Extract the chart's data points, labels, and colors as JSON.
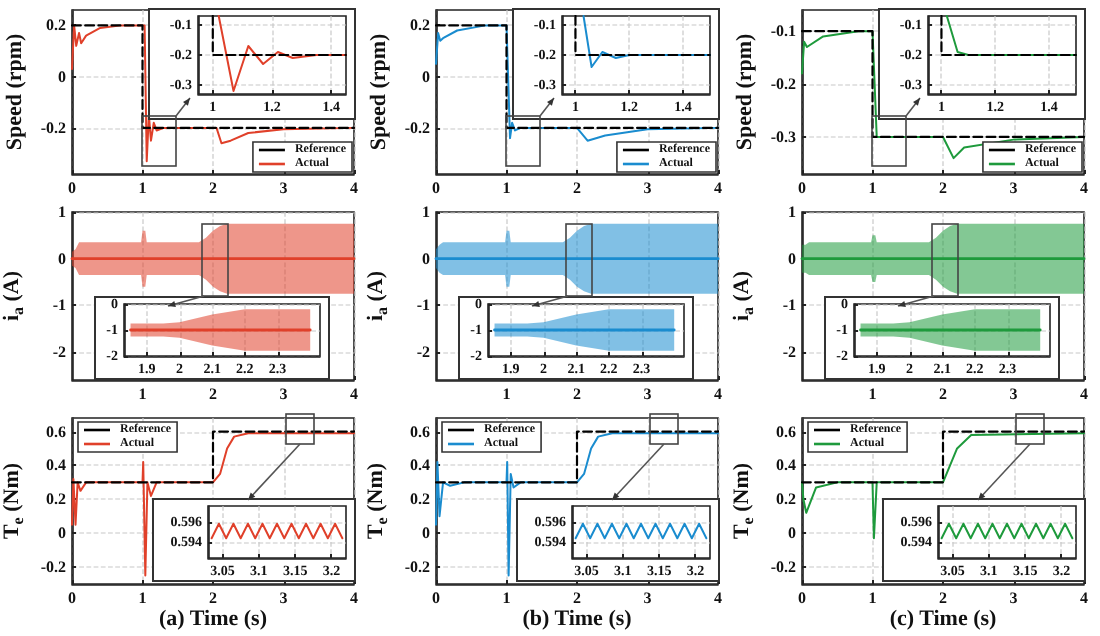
{
  "chart_data": [
    {
      "type": "line",
      "xlim": [
        0,
        4
      ],
      "xticks": [
        0,
        1,
        2,
        3,
        4
      ],
      "ylim": [
        -0.38,
        0.26
      ],
      "yticks": [
        -0.2,
        0,
        0.2
      ],
      "ylabel": "Speed (rpm)",
      "legend": "bottom right",
      "grid": true,
      "series": [
        {
          "name": "Reference",
          "color": "#000000",
          "line_style": "dashed",
          "x": [
            0,
            1,
            1,
            4
          ],
          "values": [
            0.2,
            0.2,
            -0.2,
            -0.2
          ]
        },
        {
          "name": "Actual",
          "color": "#e0402a",
          "line_style": "solid",
          "x": [
            0,
            0.03,
            0.06,
            0.1,
            0.13,
            0.2,
            0.4,
            0.7,
            1.0,
            1.03,
            1.06,
            1.09,
            1.12,
            1.16,
            1.2,
            1.3,
            2.0,
            2.05,
            2.12,
            2.25,
            2.5,
            3,
            4
          ],
          "values": [
            0.03,
            0.2,
            0.12,
            0.17,
            0.13,
            0.16,
            0.19,
            0.2,
            0.2,
            0.2,
            -0.33,
            -0.15,
            -0.25,
            -0.18,
            -0.21,
            -0.2,
            -0.2,
            -0.2,
            -0.26,
            -0.25,
            -0.22,
            -0.205,
            -0.2
          ]
        }
      ]
    },
    {
      "type": "line",
      "xlim": [
        0.95,
        1.45
      ],
      "xticks": [
        1,
        1.2,
        1.4
      ],
      "ylim": [
        -0.33,
        -0.07
      ],
      "yticks": [
        -0.3,
        -0.2,
        -0.1
      ],
      "grid": true,
      "series": [
        {
          "color": "#000000",
          "line_style": "dashed",
          "x": [
            1,
            1,
            1.45
          ],
          "values": [
            -0.07,
            -0.2,
            -0.2
          ]
        },
        {
          "color": "#e0402a",
          "line_style": "solid",
          "x": [
            1.02,
            1.07,
            1.12,
            1.17,
            1.22,
            1.27,
            1.35,
            1.45
          ],
          "values": [
            -0.07,
            -0.32,
            -0.17,
            -0.23,
            -0.19,
            -0.21,
            -0.2,
            -0.2
          ]
        }
      ]
    },
    {
      "type": "line",
      "xlim": [
        0,
        4
      ],
      "xticks": [
        0,
        1,
        2,
        3,
        4
      ],
      "ylim": [
        -0.38,
        0.26
      ],
      "yticks": [
        -0.2,
        0,
        0.2
      ],
      "ylabel": "Speed (rpm)",
      "legend": "bottom right",
      "grid": true,
      "series": [
        {
          "name": "Reference",
          "color": "#000000",
          "line_style": "dashed",
          "x": [
            0,
            1,
            1,
            4
          ],
          "values": [
            0.2,
            0.2,
            -0.2,
            -0.2
          ]
        },
        {
          "name": "Actual",
          "color": "#1a8ccf",
          "line_style": "solid",
          "x": [
            0,
            0.03,
            0.06,
            0.1,
            0.3,
            0.7,
            1.0,
            1.02,
            1.05,
            1.08,
            1.12,
            1.2,
            2.0,
            2.15,
            2.4,
            3,
            4
          ],
          "values": [
            0.05,
            0.17,
            0.14,
            0.15,
            0.18,
            0.2,
            0.2,
            0.2,
            -0.24,
            -0.18,
            -0.21,
            -0.2,
            -0.2,
            -0.25,
            -0.23,
            -0.205,
            -0.2
          ]
        }
      ]
    },
    {
      "type": "line",
      "xlim": [
        0.95,
        1.5
      ],
      "xticks": [
        1,
        1.2,
        1.4
      ],
      "ylim": [
        -0.33,
        -0.07
      ],
      "yticks": [
        -0.3,
        -0.2,
        -0.1
      ],
      "grid": true,
      "series": [
        {
          "color": "#000000",
          "line_style": "dashed",
          "x": [
            1,
            1,
            1.5
          ],
          "values": [
            -0.07,
            -0.2,
            -0.2
          ]
        },
        {
          "color": "#1a8ccf",
          "line_style": "solid",
          "x": [
            1.03,
            1.06,
            1.1,
            1.15,
            1.2,
            1.5
          ],
          "values": [
            -0.07,
            -0.24,
            -0.19,
            -0.21,
            -0.2,
            -0.2
          ]
        }
      ]
    },
    {
      "type": "line",
      "xlim": [
        0,
        4
      ],
      "xticks": [
        0,
        1,
        2,
        3,
        4
      ],
      "ylim": [
        -0.37,
        -0.06
      ],
      "yticks": [
        -0.3,
        -0.2,
        -0.1
      ],
      "ylabel": "Speed (rpm)",
      "legend": "bottom right",
      "grid": true,
      "series": [
        {
          "name": "Reference",
          "color": "#000000",
          "line_style": "dashed",
          "x": [
            0,
            1,
            1,
            4
          ],
          "values": [
            -0.1,
            -0.1,
            -0.3,
            -0.3
          ]
        },
        {
          "name": "Actual",
          "color": "#1e9a3c",
          "line_style": "solid",
          "x": [
            0,
            0.03,
            0.07,
            0.3,
            0.8,
            1.0,
            1.06,
            2.0,
            2.15,
            2.3,
            3,
            4
          ],
          "values": [
            -0.18,
            -0.12,
            -0.13,
            -0.11,
            -0.1,
            -0.1,
            -0.3,
            -0.3,
            -0.34,
            -0.32,
            -0.305,
            -0.3
          ]
        }
      ]
    },
    {
      "type": "line",
      "xlim": [
        0.95,
        1.5
      ],
      "xticks": [
        1,
        1.2,
        1.4
      ],
      "ylim": [
        -0.33,
        -0.07
      ],
      "yticks": [
        -0.3,
        -0.2,
        -0.1
      ],
      "grid": true,
      "series": [
        {
          "color": "#000000",
          "line_style": "dashed",
          "x": [
            1,
            1,
            1.5
          ],
          "values": [
            -0.07,
            -0.2,
            -0.2
          ]
        },
        {
          "color": "#1e9a3c",
          "line_style": "solid",
          "x": [
            1.02,
            1.06,
            1.1,
            1.5
          ],
          "values": [
            -0.07,
            -0.19,
            -0.2,
            -0.2
          ]
        }
      ]
    },
    {
      "type": "line",
      "xlim": [
        0,
        4
      ],
      "xticks": [
        1,
        2,
        3,
        4
      ],
      "ylim": [
        -2.6,
        1
      ],
      "yticks": [
        -2,
        -1,
        0,
        1
      ],
      "ylabel": "i$_{a}$ (A)",
      "grid": true,
      "series": [
        {
          "color": "#e0402a",
          "line_style": "solid",
          "x": [
            0,
            0.05,
            0.1,
            0.9,
            0.98,
            1.0,
            1.04,
            1.06,
            1.1,
            1.8,
            1.9,
            2.0,
            2.1,
            2.2,
            3,
            4
          ],
          "values": [
            0,
            0,
            0,
            0,
            0,
            0,
            0,
            0,
            0,
            0,
            0,
            0,
            0,
            0,
            0,
            0
          ],
          "upper": [
            0.15,
            0.2,
            0.35,
            0.35,
            0.35,
            0.6,
            0.6,
            0.35,
            0.35,
            0.35,
            0.45,
            0.6,
            0.7,
            0.75,
            0.75,
            0.75
          ],
          "lower": [
            -0.15,
            -0.2,
            -0.35,
            -0.35,
            -0.35,
            -0.6,
            -0.6,
            -0.35,
            -0.35,
            -0.35,
            -0.45,
            -0.6,
            -0.7,
            -0.75,
            -0.75,
            -0.75
          ]
        }
      ]
    },
    {
      "type": "line",
      "xlim": [
        1.83,
        2.43
      ],
      "xticks": [
        1.9,
        2,
        2.1,
        2.2,
        2.3
      ],
      "ylim": [
        -2,
        0
      ],
      "yticks": [
        -2,
        -1,
        0
      ],
      "grid": true,
      "series": [
        {
          "color": "#e0402a",
          "line_style": "solid",
          "x": [
            1.85,
            1.95,
            2.0,
            2.1,
            2.2,
            2.4
          ],
          "values": [
            -1,
            -1,
            -1,
            -1,
            -1,
            -1
          ],
          "upper": [
            -0.75,
            -0.75,
            -0.7,
            -0.4,
            -0.2,
            -0.2
          ],
          "lower": [
            -1.25,
            -1.25,
            -1.3,
            -1.6,
            -1.8,
            -1.8
          ]
        }
      ]
    },
    {
      "type": "line",
      "xlim": [
        0,
        4
      ],
      "xticks": [
        1,
        2,
        3,
        4
      ],
      "ylim": [
        -2.6,
        1
      ],
      "yticks": [
        -2,
        -1,
        0,
        1
      ],
      "ylabel": "i$_{a}$ (A)",
      "grid": true,
      "series": [
        {
          "color": "#1a8ccf",
          "line_style": "solid",
          "x": [
            0,
            0.05,
            0.1,
            0.9,
            0.98,
            1.0,
            1.04,
            1.06,
            1.1,
            1.8,
            1.9,
            2.0,
            2.1,
            2.2,
            3,
            4
          ],
          "values": [
            0,
            0,
            0,
            0,
            0,
            0,
            0,
            0,
            0,
            0,
            0,
            0,
            0,
            0,
            0,
            0
          ],
          "upper": [
            0.2,
            0.3,
            0.35,
            0.35,
            0.35,
            0.6,
            0.6,
            0.35,
            0.35,
            0.35,
            0.45,
            0.6,
            0.7,
            0.75,
            0.75,
            0.75
          ],
          "lower": [
            -0.2,
            -0.3,
            -0.35,
            -0.35,
            -0.35,
            -0.6,
            -0.6,
            -0.35,
            -0.35,
            -0.35,
            -0.45,
            -0.6,
            -0.7,
            -0.75,
            -0.75,
            -0.75
          ]
        }
      ]
    },
    {
      "type": "line",
      "xlim": [
        1.83,
        2.43
      ],
      "xticks": [
        1.9,
        2,
        2.1,
        2.2,
        2.3
      ],
      "ylim": [
        -2,
        0
      ],
      "yticks": [
        -2,
        -1,
        0
      ],
      "grid": true,
      "series": [
        {
          "color": "#1a8ccf",
          "line_style": "solid",
          "x": [
            1.85,
            1.95,
            2.0,
            2.1,
            2.2,
            2.4
          ],
          "values": [
            -1,
            -1,
            -1,
            -1,
            -1,
            -1
          ],
          "upper": [
            -0.75,
            -0.75,
            -0.7,
            -0.4,
            -0.2,
            -0.2
          ],
          "lower": [
            -1.25,
            -1.25,
            -1.3,
            -1.6,
            -1.8,
            -1.8
          ]
        }
      ]
    },
    {
      "type": "line",
      "xlim": [
        0,
        4
      ],
      "xticks": [
        1,
        2,
        3,
        4
      ],
      "ylim": [
        -2.6,
        1
      ],
      "yticks": [
        -2,
        -1,
        0,
        1
      ],
      "ylabel": "i$_{a}$ (A)",
      "grid": true,
      "series": [
        {
          "color": "#1e9a3c",
          "line_style": "solid",
          "x": [
            0,
            0.05,
            0.1,
            0.9,
            0.98,
            1.0,
            1.04,
            1.06,
            1.1,
            1.8,
            1.9,
            2.0,
            2.1,
            2.2,
            3,
            4
          ],
          "values": [
            0,
            0,
            0,
            0,
            0,
            0,
            0,
            0,
            0,
            0,
            0,
            0,
            0,
            0,
            0,
            0
          ],
          "upper": [
            0.3,
            0.3,
            0.35,
            0.35,
            0.35,
            0.5,
            0.5,
            0.35,
            0.35,
            0.35,
            0.45,
            0.6,
            0.7,
            0.75,
            0.75,
            0.75
          ],
          "lower": [
            -0.3,
            -0.3,
            -0.35,
            -0.35,
            -0.35,
            -0.5,
            -0.5,
            -0.35,
            -0.35,
            -0.35,
            -0.45,
            -0.6,
            -0.7,
            -0.75,
            -0.75,
            -0.75
          ]
        }
      ]
    },
    {
      "type": "line",
      "xlim": [
        1.83,
        2.43
      ],
      "xticks": [
        1.9,
        2,
        2.1,
        2.2,
        2.3
      ],
      "ylim": [
        -2,
        0
      ],
      "yticks": [
        -2,
        -1,
        0
      ],
      "grid": true,
      "series": [
        {
          "color": "#1e9a3c",
          "line_style": "solid",
          "x": [
            1.85,
            1.95,
            2.0,
            2.1,
            2.2,
            2.4
          ],
          "values": [
            -1,
            -1,
            -1,
            -1,
            -1,
            -1
          ],
          "upper": [
            -0.75,
            -0.75,
            -0.7,
            -0.4,
            -0.2,
            -0.2
          ],
          "lower": [
            -1.25,
            -1.25,
            -1.3,
            -1.6,
            -1.8,
            -1.8
          ]
        }
      ]
    },
    {
      "type": "line",
      "xlim": [
        0,
        4
      ],
      "xticks": [
        0,
        1,
        2,
        3,
        4
      ],
      "ylim": [
        -0.3,
        0.68
      ],
      "yticks": [
        -0.2,
        0,
        0.2,
        0.4,
        0.6
      ],
      "ylabel": "T$_{e}$ (Nm)",
      "xlabel": "(a) Time (s)",
      "legend": "top left",
      "grid": true,
      "series": [
        {
          "name": "Reference",
          "color": "#000000",
          "line_style": "dashed",
          "x": [
            0,
            2,
            2,
            4
          ],
          "values": [
            0.3,
            0.3,
            0.6,
            0.6
          ]
        },
        {
          "name": "Actual",
          "color": "#e0402a",
          "line_style": "solid",
          "x": [
            0,
            0.02,
            0.05,
            0.08,
            0.12,
            0.2,
            1.0,
            1.01,
            1.04,
            1.07,
            1.12,
            1.2,
            2.0,
            2.1,
            2.2,
            2.3,
            2.5,
            4
          ],
          "values": [
            0.05,
            0.32,
            0.05,
            0.3,
            0.25,
            0.3,
            0.3,
            0.42,
            -0.25,
            0.3,
            0.22,
            0.3,
            0.3,
            0.35,
            0.5,
            0.57,
            0.59,
            0.59
          ]
        }
      ]
    },
    {
      "type": "line",
      "xlim": [
        3.03,
        3.22
      ],
      "xticks": [
        3.05,
        3.1,
        3.15,
        3.2
      ],
      "ylim": [
        0.5925,
        0.5975
      ],
      "yticks": [
        0.594,
        0.596
      ],
      "grid": true,
      "series": [
        {
          "color": "#e0402a",
          "line_style": "solid",
          "x": [
            3.035,
            3.045,
            3.055,
            3.065,
            3.075,
            3.085,
            3.095,
            3.105,
            3.115,
            3.125,
            3.135,
            3.145,
            3.155,
            3.165,
            3.175,
            3.185,
            3.195,
            3.205,
            3.215
          ],
          "values": [
            0.5944,
            0.5958,
            0.5944,
            0.5958,
            0.5944,
            0.5958,
            0.5944,
            0.5958,
            0.5944,
            0.5958,
            0.5944,
            0.5958,
            0.5944,
            0.5958,
            0.5944,
            0.5958,
            0.5944,
            0.5958,
            0.5944
          ]
        }
      ]
    },
    {
      "type": "line",
      "xlim": [
        0,
        4
      ],
      "xticks": [
        0,
        1,
        2,
        3,
        4
      ],
      "ylim": [
        -0.3,
        0.68
      ],
      "yticks": [
        -0.2,
        0,
        0.2,
        0.4,
        0.6
      ],
      "ylabel": "T$_{e}$ (Nm)",
      "xlabel": "(b) Time (s)",
      "legend": "top left",
      "grid": true,
      "series": [
        {
          "name": "Reference",
          "color": "#000000",
          "line_style": "dashed",
          "x": [
            0,
            2,
            2,
            4
          ],
          "values": [
            0.3,
            0.3,
            0.6,
            0.6
          ]
        },
        {
          "name": "Actual",
          "color": "#1a8ccf",
          "line_style": "solid",
          "x": [
            0,
            0.02,
            0.05,
            0.1,
            0.2,
            0.4,
            1.0,
            1.01,
            1.03,
            1.06,
            1.1,
            1.2,
            2.0,
            2.1,
            2.2,
            2.3,
            2.5,
            4
          ],
          "values": [
            0.05,
            0.42,
            0.1,
            0.3,
            0.28,
            0.3,
            0.3,
            0.42,
            -0.25,
            0.35,
            0.27,
            0.3,
            0.3,
            0.35,
            0.5,
            0.57,
            0.59,
            0.59
          ]
        }
      ]
    },
    {
      "type": "line",
      "xlim": [
        3.03,
        3.22
      ],
      "xticks": [
        3.05,
        3.1,
        3.15,
        3.2
      ],
      "ylim": [
        0.5925,
        0.5975
      ],
      "yticks": [
        0.594,
        0.596
      ],
      "grid": true,
      "series": [
        {
          "color": "#1a8ccf",
          "line_style": "solid",
          "x": [
            3.035,
            3.045,
            3.055,
            3.065,
            3.075,
            3.085,
            3.095,
            3.105,
            3.115,
            3.125,
            3.135,
            3.145,
            3.155,
            3.165,
            3.175,
            3.185,
            3.195,
            3.205,
            3.215
          ],
          "values": [
            0.5944,
            0.5958,
            0.5944,
            0.5958,
            0.5944,
            0.5958,
            0.5944,
            0.5958,
            0.5944,
            0.5958,
            0.5944,
            0.5958,
            0.5944,
            0.5958,
            0.5944,
            0.5958,
            0.5944,
            0.5958,
            0.5944
          ]
        }
      ]
    },
    {
      "type": "line",
      "xlim": [
        0,
        4
      ],
      "xticks": [
        0,
        1,
        2,
        3,
        4
      ],
      "ylim": [
        -0.3,
        0.68
      ],
      "yticks": [
        -0.2,
        0,
        0.2,
        0.4,
        0.6
      ],
      "ylabel": "T$_{e}$ (Nm)",
      "xlabel": "(c) Time (s)",
      "legend": "top left",
      "grid": true,
      "series": [
        {
          "name": "Reference",
          "color": "#000000",
          "line_style": "dashed",
          "x": [
            0,
            2,
            2,
            4
          ],
          "values": [
            0.3,
            0.3,
            0.6,
            0.6
          ]
        },
        {
          "name": "Actual",
          "color": "#1e9a3c",
          "line_style": "solid",
          "x": [
            0,
            0.02,
            0.06,
            0.2,
            0.5,
            1.0,
            1.02,
            1.06,
            2.0,
            2.2,
            2.4,
            4
          ],
          "values": [
            0.3,
            0.2,
            0.12,
            0.27,
            0.3,
            0.3,
            -0.03,
            0.3,
            0.3,
            0.5,
            0.58,
            0.59
          ]
        }
      ]
    },
    {
      "type": "line",
      "xlim": [
        3.03,
        3.22
      ],
      "xticks": [
        3.05,
        3.1,
        3.15,
        3.2
      ],
      "ylim": [
        0.5925,
        0.5975
      ],
      "yticks": [
        0.594,
        0.596
      ],
      "grid": true,
      "series": [
        {
          "color": "#1e9a3c",
          "line_style": "solid",
          "x": [
            3.035,
            3.045,
            3.055,
            3.065,
            3.075,
            3.085,
            3.095,
            3.105,
            3.115,
            3.125,
            3.135,
            3.145,
            3.155,
            3.165,
            3.175,
            3.185,
            3.195,
            3.205,
            3.215
          ],
          "values": [
            0.5944,
            0.5958,
            0.5944,
            0.5958,
            0.5944,
            0.5958,
            0.5944,
            0.5958,
            0.5944,
            0.5958,
            0.5944,
            0.5958,
            0.5944,
            0.5958,
            0.5944,
            0.5958,
            0.5944,
            0.5958,
            0.5944
          ]
        }
      ]
    }
  ]
}
